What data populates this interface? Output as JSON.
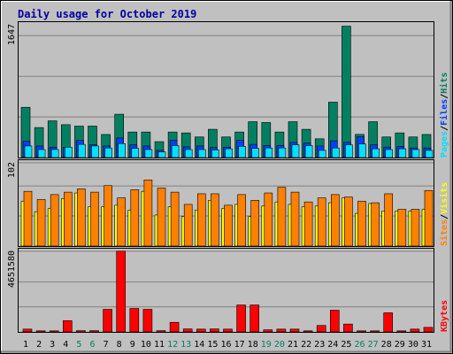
{
  "chart_data": {
    "type": "bar",
    "title": "Daily usage for October 2019",
    "days": [
      "1",
      "2",
      "3",
      "4",
      "5",
      "6",
      "7",
      "8",
      "9",
      "10",
      "11",
      "12",
      "13",
      "14",
      "15",
      "16",
      "17",
      "18",
      "19",
      "20",
      "21",
      "22",
      "23",
      "24",
      "25",
      "26",
      "27",
      "28",
      "29",
      "30",
      "31"
    ],
    "weekend_days": [
      "5",
      "6",
      "12",
      "13",
      "19",
      "20",
      "26",
      "27"
    ],
    "panels": [
      {
        "name": "hits-files-pages",
        "ymax": 1647,
        "ymax_label": "1647",
        "legend": [
          {
            "label": "Pages",
            "color": "#00e0ff"
          },
          {
            "label": "/",
            "color": "#000000"
          },
          {
            "label": "Files",
            "color": "#0040ff"
          },
          {
            "label": "/",
            "color": "#000000"
          },
          {
            "label": "Hits",
            "color": "#008060"
          }
        ],
        "series": [
          {
            "name": "Hits",
            "color": "#008060",
            "values": [
              630,
              376,
              460,
              412,
              394,
              394,
              289,
              543,
              320,
              320,
              199,
              320,
              309,
              258,
              354,
              258,
              320,
              449,
              439,
              320,
              449,
              354,
              235,
              694,
              1647,
              290,
              449,
              258,
              309,
              258,
              289
            ]
          },
          {
            "name": "Files",
            "color": "#0040ff",
            "values": [
              205,
              145,
              130,
              130,
              215,
              160,
              145,
              245,
              160,
              145,
              90,
              215,
              135,
              145,
              125,
              130,
              215,
              165,
              150,
              150,
              190,
              180,
              145,
              210,
              190,
              260,
              160,
              130,
              140,
              120,
              120
            ]
          },
          {
            "name": "Pages",
            "color": "#00e0ff",
            "values": [
              145,
              100,
              100,
              130,
              165,
              145,
              120,
              175,
              115,
              100,
              70,
              150,
              100,
              100,
              95,
              110,
              140,
              115,
              120,
              120,
              160,
              150,
              90,
              120,
              160,
              170,
              110,
              100,
              110,
              100,
              90
            ]
          }
        ]
      },
      {
        "name": "visits-sites",
        "ymax": 102,
        "ymax_label": "102",
        "legend": [
          {
            "label": "Sites",
            "color": "#ff8000"
          },
          {
            "label": "/",
            "color": "#000000"
          },
          {
            "label": "Visits",
            "color": "#ffff00"
          }
        ],
        "series": [
          {
            "name": "Visits",
            "color": "#ffff00",
            "values": [
              55,
              42,
              46,
              58,
              65,
              48,
              48,
              50,
              44,
              67,
              38,
              48,
              36,
              44,
              56,
              46,
              51,
              36,
              49,
              54,
              51,
              48,
              49,
              53,
              59,
              40,
              52,
              43,
              43,
              43,
              45
            ]
          },
          {
            "name": "Sites",
            "color": "#ff8000",
            "values": [
              67,
              57,
              63,
              66,
              70,
              66,
              74,
              59,
              69,
              81,
              71,
              66,
              51,
              64,
              64,
              50,
              63,
              56,
              65,
              72,
              66,
              54,
              59,
              63,
              60,
              55,
              53,
              64,
              45,
              45,
              68
            ]
          }
        ]
      },
      {
        "name": "kbytes",
        "ymax": 4651580,
        "ymax_label": "4651580",
        "legend": [
          {
            "label": "KBytes",
            "color": "#ff0000"
          }
        ],
        "series": [
          {
            "name": "KBytes",
            "color": "#ff0000",
            "values": [
              160000,
              60000,
              60000,
              650000,
              70000,
              70000,
              1300000,
              4651580,
              1350000,
              1300000,
              70000,
              550000,
              170000,
              160000,
              170000,
              160000,
              1550000,
              1550000,
              120000,
              160000,
              160000,
              60000,
              370000,
              1250000,
              450000,
              60000,
              60000,
              1100000,
              60000,
              160000,
              260000
            ]
          }
        ]
      }
    ]
  }
}
